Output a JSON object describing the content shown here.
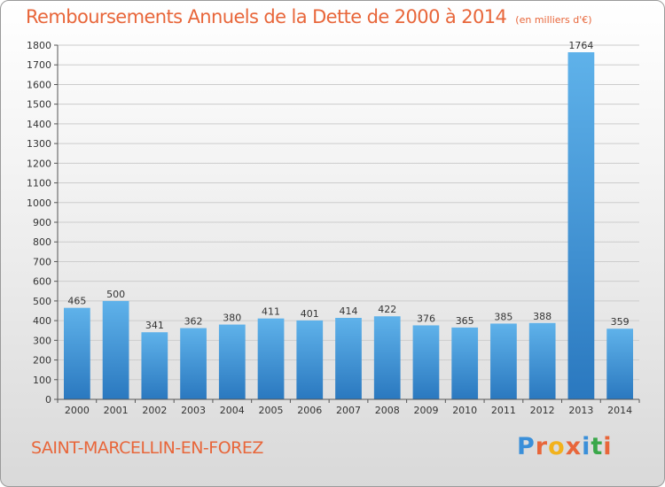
{
  "title": "Remboursements Annuels de la Dette de 2000 à 2014",
  "unit": "(en milliers d'€)",
  "commune": "SAINT-MARCELLIN-EN-FOREZ",
  "brand": {
    "letters": [
      "P",
      "r",
      "o",
      "x",
      "i",
      "t",
      "i"
    ],
    "colors": [
      "#3a8fd9",
      "#e8663a",
      "#f2b21c",
      "#e8663a",
      "#3a8fd9",
      "#3aa84a",
      "#e8663a"
    ]
  },
  "colors": {
    "bar_light": "#5fb2ea",
    "bar_dark": "#2a78bf",
    "accent": "#e8663a",
    "grid": "#cccccc"
  },
  "chart_data": {
    "type": "bar",
    "categories": [
      "2000",
      "2001",
      "2002",
      "2003",
      "2004",
      "2005",
      "2006",
      "2007",
      "2008",
      "2009",
      "2010",
      "2011",
      "2012",
      "2013",
      "2014"
    ],
    "values": [
      465,
      500,
      341,
      362,
      380,
      411,
      401,
      414,
      422,
      376,
      365,
      385,
      388,
      1764,
      359
    ],
    "ylim": [
      0,
      1800
    ],
    "yticks": [
      "0",
      "100",
      "200",
      "300",
      "400",
      "500",
      "600",
      "700",
      "800",
      "900",
      "1000",
      "1100",
      "1200",
      "1300",
      "1400",
      "1500",
      "1600",
      "1700",
      "1800"
    ],
    "grid": true
  }
}
